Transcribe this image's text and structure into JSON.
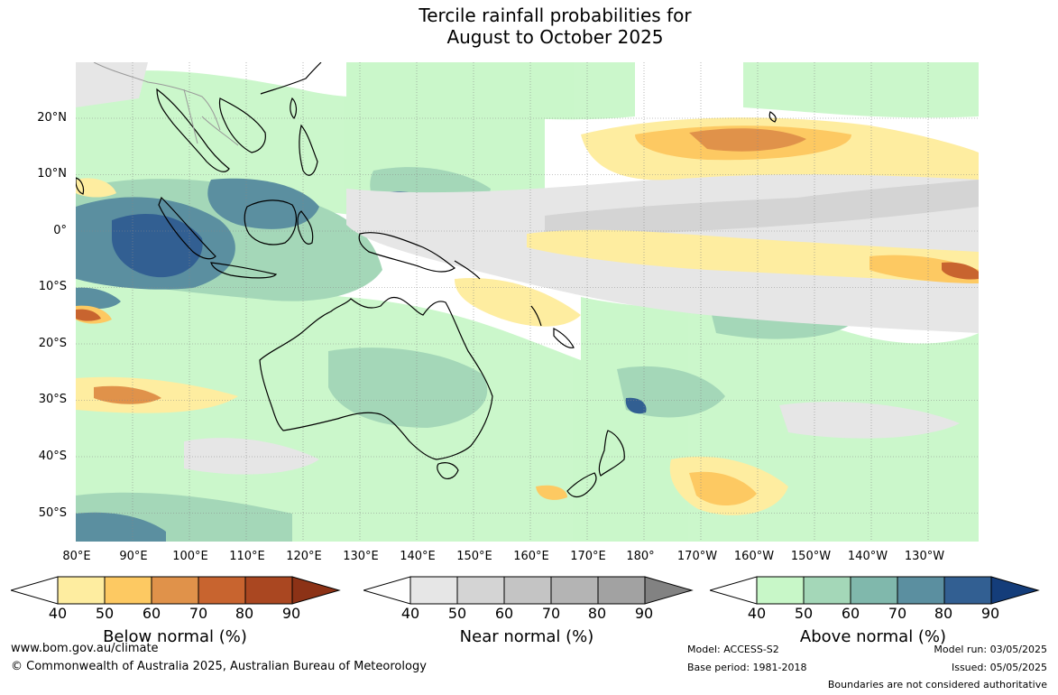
{
  "title": {
    "line1": "Tercile rainfall probabilities for",
    "line2": "August to October 2025"
  },
  "map": {
    "lat_labels": [
      "20°N",
      "10°N",
      "0°",
      "10°S",
      "20°S",
      "30°S",
      "40°S",
      "50°S"
    ],
    "lon_labels": [
      "80°E",
      "90°E",
      "100°E",
      "110°E",
      "120°E",
      "130°E",
      "140°E",
      "150°E",
      "160°E",
      "170°E",
      "180°",
      "170°W",
      "160°W",
      "150°W",
      "140°W",
      "130°W"
    ],
    "grid": true
  },
  "colorbars": [
    {
      "name": "Below normal (%)",
      "ticks": [
        "40",
        "50",
        "60",
        "70",
        "80",
        "90"
      ],
      "colors": [
        "#ffffff",
        "#feeda0",
        "#fdc962",
        "#e0924a",
        "#c8642f",
        "#aa4721",
        "#8c3216"
      ]
    },
    {
      "name": "Near normal (%)",
      "ticks": [
        "40",
        "50",
        "60",
        "70",
        "80",
        "90"
      ],
      "colors": [
        "#ffffff",
        "#e6e6e6",
        "#d4d4d4",
        "#c4c4c4",
        "#b4b4b4",
        "#a2a2a2",
        "#828282"
      ]
    },
    {
      "name": "Above normal (%)",
      "ticks": [
        "40",
        "50",
        "60",
        "70",
        "80",
        "90"
      ],
      "colors": [
        "#ffffff",
        "#c8f7c8",
        "#a4d7b8",
        "#80b8ac",
        "#5b8fa0",
        "#325f92",
        "#143d7a"
      ]
    }
  ],
  "footer": {
    "url": "www.bom.gov.au/climate",
    "copyright": "© Commonwealth of Australia 2025, Australian Bureau of Meteorology",
    "model": "Model: ACCESS-S2",
    "base_period": "Base period: 1981-2018",
    "model_run": "Model run: 03/05/2025",
    "issued": "Issued: 05/05/2025",
    "disclaimer": "Boundaries are not considered authoritative"
  }
}
